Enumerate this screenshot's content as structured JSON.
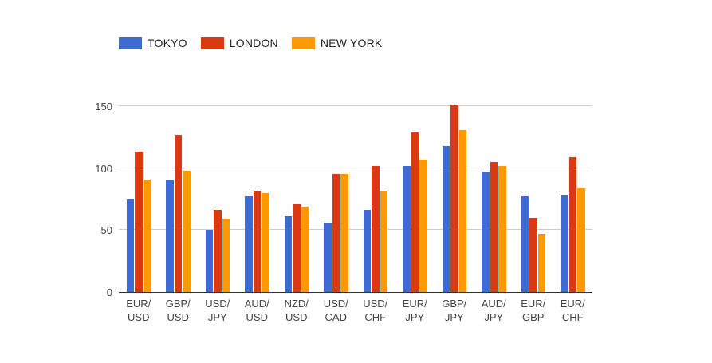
{
  "chart": {
    "background_color": "#ffffff",
    "axis_line_color": "#333333",
    "gridline_color": "#cccccc",
    "tick_label_color": "#444444",
    "legend_label_color": "#222222"
  },
  "chart_data": {
    "type": "bar",
    "title": "",
    "xlabel": "",
    "ylabel": "",
    "grid": true,
    "legend_position": "top",
    "ylim": [
      0,
      150
    ],
    "yticks": [
      0,
      50,
      100,
      150
    ],
    "categories": [
      "EUR/USD",
      "GBP/USD",
      "USD/JPY",
      "AUD/USD",
      "NZD/USD",
      "USD/CAD",
      "USD/CHF",
      "EUR/JPY",
      "GBP/JPY",
      "AUD/JPY",
      "EUR/GBP",
      "EUR/CHF"
    ],
    "series": [
      {
        "name": "TOKYO",
        "color": "#3d6bd3",
        "values": [
          75,
          91,
          50,
          77,
          61,
          56,
          66,
          102,
          118,
          97,
          77,
          78
        ]
      },
      {
        "name": "LONDON",
        "color": "#db3912",
        "values": [
          113,
          127,
          66,
          82,
          71,
          95,
          102,
          129,
          151,
          105,
          60,
          109
        ]
      },
      {
        "name": "NEW YORK",
        "color": "#fd9902",
        "values": [
          91,
          98,
          59,
          80,
          69,
          95,
          82,
          107,
          131,
          102,
          47,
          84
        ]
      }
    ]
  }
}
